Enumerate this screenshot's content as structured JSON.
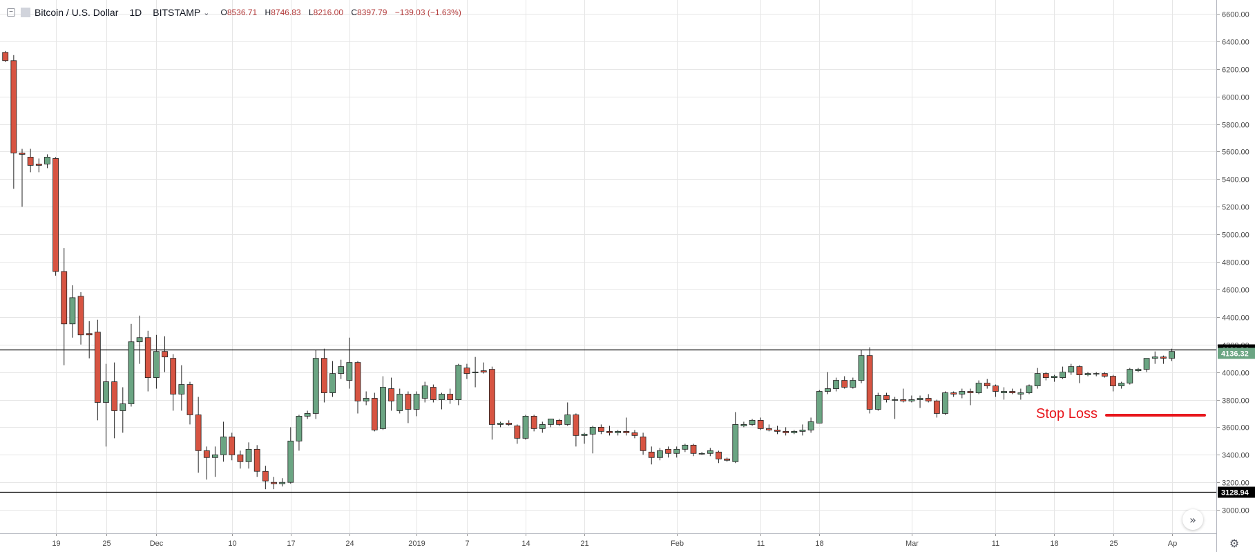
{
  "header": {
    "toggle_icon": "minus-square-icon",
    "symbol": "Bitcoin / U.S. Dollar",
    "interval": "1D",
    "exchange": "BITSTAMP",
    "ohlc": {
      "open_label": "O",
      "open": "8536.71",
      "high_label": "H",
      "high": "8746.83",
      "low_label": "L",
      "low": "8216.00",
      "close_label": "C",
      "close": "8397.79",
      "change": "−139.03 (−1.63%)"
    }
  },
  "annotation": {
    "text": "Stop Loss",
    "color": "#e8161c"
  },
  "colors": {
    "up": "#6ba583",
    "down": "#d75442",
    "grid": "#e6e6e6",
    "hline": "#000000"
  },
  "chart_data": {
    "type": "candlestick",
    "title": "",
    "xlabel": "",
    "ylabel": "",
    "ylim": [
      2830,
      6700
    ],
    "grid": true,
    "y_ticks": [
      3000,
      3200,
      3400,
      3600,
      3800,
      4000,
      4200,
      4400,
      4600,
      4800,
      5000,
      5200,
      5400,
      5600,
      5800,
      6000,
      6200,
      6400,
      6600
    ],
    "y_tick_labels": [
      "3000.00",
      "3200.00",
      "3400.00",
      "3600.00",
      "3800.00",
      "4000.00",
      "4200.00",
      "4400.00",
      "4600.00",
      "4800.00",
      "5000.00",
      "5200.00",
      "5400.00",
      "5600.00",
      "5800.00",
      "6000.00",
      "6200.00",
      "6400.00",
      "6600.00"
    ],
    "x_ticks": [
      {
        "index": 6,
        "label": "19"
      },
      {
        "index": 12,
        "label": "25"
      },
      {
        "index": 18,
        "label": "Dec"
      },
      {
        "index": 27,
        "label": "10"
      },
      {
        "index": 34,
        "label": "17"
      },
      {
        "index": 41,
        "label": "24"
      },
      {
        "index": 49,
        "label": "2019"
      },
      {
        "index": 55,
        "label": "7"
      },
      {
        "index": 62,
        "label": "14"
      },
      {
        "index": 69,
        "label": "21"
      },
      {
        "index": 80,
        "label": "Feb"
      },
      {
        "index": 90,
        "label": "11"
      },
      {
        "index": 97,
        "label": "18"
      },
      {
        "index": 108,
        "label": "Mar"
      },
      {
        "index": 118,
        "label": "11"
      },
      {
        "index": 125,
        "label": "18"
      },
      {
        "index": 132,
        "label": "25"
      },
      {
        "index": 139,
        "label": "Ap"
      }
    ],
    "horizontal_lines": [
      {
        "value": 4161.24,
        "label": "4161.24"
      },
      {
        "value": 3128.94,
        "label": "3128.94"
      }
    ],
    "last_price": {
      "value": 4136.32,
      "label": "4136.32"
    },
    "candles": [
      [
        6320,
        6330,
        6250,
        6260
      ],
      [
        6260,
        6300,
        5330,
        5590
      ],
      [
        5590,
        5620,
        5200,
        5580
      ],
      [
        5560,
        5620,
        5450,
        5500
      ],
      [
        5510,
        5550,
        5450,
        5500
      ],
      [
        5510,
        5580,
        5480,
        5560
      ],
      [
        5550,
        5560,
        4700,
        4730
      ],
      [
        4730,
        4900,
        4050,
        4350
      ],
      [
        4350,
        4630,
        4250,
        4540
      ],
      [
        4550,
        4580,
        4200,
        4270
      ],
      [
        4280,
        4370,
        4100,
        4270
      ],
      [
        4290,
        4380,
        3650,
        3780
      ],
      [
        3780,
        4060,
        3460,
        3930
      ],
      [
        3930,
        4070,
        3520,
        3720
      ],
      [
        3720,
        3890,
        3560,
        3770
      ],
      [
        3770,
        4350,
        3750,
        4220
      ],
      [
        4220,
        4410,
        4060,
        4250
      ],
      [
        4250,
        4300,
        3860,
        3960
      ],
      [
        3960,
        4270,
        3880,
        4150
      ],
      [
        4150,
        4260,
        4000,
        4110
      ],
      [
        4100,
        4130,
        3720,
        3840
      ],
      [
        3840,
        4050,
        3720,
        3910
      ],
      [
        3910,
        3930,
        3620,
        3690
      ],
      [
        3690,
        3820,
        3270,
        3430
      ],
      [
        3430,
        3460,
        3220,
        3380
      ],
      [
        3380,
        3460,
        3240,
        3400
      ],
      [
        3400,
        3640,
        3350,
        3530
      ],
      [
        3530,
        3560,
        3360,
        3400
      ],
      [
        3400,
        3430,
        3300,
        3350
      ],
      [
        3350,
        3490,
        3300,
        3440
      ],
      [
        3440,
        3470,
        3240,
        3280
      ],
      [
        3280,
        3320,
        3150,
        3210
      ],
      [
        3200,
        3240,
        3150,
        3190
      ],
      [
        3190,
        3230,
        3170,
        3200
      ],
      [
        3200,
        3600,
        3190,
        3500
      ],
      [
        3500,
        3690,
        3430,
        3680
      ],
      [
        3680,
        3720,
        3660,
        3700
      ],
      [
        3700,
        4160,
        3660,
        4100
      ],
      [
        4100,
        4170,
        3780,
        3850
      ],
      [
        3850,
        4080,
        3820,
        3990
      ],
      [
        3990,
        4090,
        3950,
        4040
      ],
      [
        3940,
        4250,
        3880,
        4070
      ],
      [
        4070,
        4080,
        3700,
        3790
      ],
      [
        3790,
        3860,
        3760,
        3810
      ],
      [
        3810,
        3850,
        3570,
        3580
      ],
      [
        3590,
        3970,
        3580,
        3890
      ],
      [
        3880,
        3960,
        3720,
        3790
      ],
      [
        3720,
        3880,
        3700,
        3840
      ],
      [
        3840,
        3860,
        3630,
        3730
      ],
      [
        3730,
        3860,
        3680,
        3840
      ],
      [
        3810,
        3930,
        3780,
        3900
      ],
      [
        3890,
        3910,
        3780,
        3800
      ],
      [
        3800,
        3850,
        3730,
        3840
      ],
      [
        3840,
        3880,
        3770,
        3800
      ],
      [
        3800,
        4060,
        3760,
        4050
      ],
      [
        4030,
        4060,
        3950,
        3990
      ],
      [
        4000,
        4110,
        3890,
        4000
      ],
      [
        4010,
        4070,
        3990,
        4000
      ],
      [
        4020,
        4040,
        3510,
        3620
      ],
      [
        3620,
        3640,
        3600,
        3630
      ],
      [
        3630,
        3650,
        3610,
        3620
      ],
      [
        3610,
        3620,
        3480,
        3520
      ],
      [
        3520,
        3690,
        3510,
        3680
      ],
      [
        3680,
        3690,
        3570,
        3590
      ],
      [
        3590,
        3640,
        3560,
        3620
      ],
      [
        3620,
        3660,
        3600,
        3660
      ],
      [
        3650,
        3660,
        3610,
        3620
      ],
      [
        3620,
        3780,
        3610,
        3690
      ],
      [
        3690,
        3700,
        3460,
        3540
      ],
      [
        3540,
        3560,
        3480,
        3550
      ],
      [
        3550,
        3610,
        3410,
        3600
      ],
      [
        3600,
        3620,
        3550,
        3570
      ],
      [
        3570,
        3610,
        3540,
        3560
      ],
      [
        3560,
        3580,
        3540,
        3570
      ],
      [
        3570,
        3670,
        3540,
        3560
      ],
      [
        3560,
        3580,
        3520,
        3540
      ],
      [
        3530,
        3560,
        3400,
        3430
      ],
      [
        3420,
        3460,
        3330,
        3380
      ],
      [
        3380,
        3450,
        3360,
        3430
      ],
      [
        3440,
        3460,
        3380,
        3410
      ],
      [
        3410,
        3460,
        3380,
        3440
      ],
      [
        3440,
        3480,
        3420,
        3470
      ],
      [
        3470,
        3480,
        3390,
        3410
      ],
      [
        3410,
        3420,
        3400,
        3410
      ],
      [
        3410,
        3450,
        3390,
        3430
      ],
      [
        3420,
        3430,
        3340,
        3370
      ],
      [
        3370,
        3380,
        3350,
        3360
      ],
      [
        3350,
        3710,
        3340,
        3620
      ],
      [
        3610,
        3640,
        3600,
        3620
      ],
      [
        3620,
        3660,
        3610,
        3650
      ],
      [
        3650,
        3670,
        3580,
        3590
      ],
      [
        3590,
        3620,
        3570,
        3580
      ],
      [
        3580,
        3610,
        3550,
        3570
      ],
      [
        3570,
        3600,
        3540,
        3560
      ],
      [
        3560,
        3580,
        3550,
        3570
      ],
      [
        3570,
        3620,
        3540,
        3580
      ],
      [
        3580,
        3670,
        3560,
        3640
      ],
      [
        3630,
        3870,
        3630,
        3860
      ],
      [
        3860,
        4000,
        3840,
        3880
      ],
      [
        3880,
        3960,
        3860,
        3940
      ],
      [
        3940,
        3970,
        3880,
        3890
      ],
      [
        3890,
        3960,
        3880,
        3940
      ],
      [
        3940,
        4160,
        3920,
        4120
      ],
      [
        4120,
        4180,
        3700,
        3730
      ],
      [
        3730,
        3850,
        3720,
        3830
      ],
      [
        3830,
        3850,
        3780,
        3800
      ],
      [
        3800,
        3820,
        3660,
        3800
      ],
      [
        3800,
        3880,
        3780,
        3790
      ],
      [
        3790,
        3830,
        3780,
        3800
      ],
      [
        3800,
        3830,
        3740,
        3810
      ],
      [
        3810,
        3840,
        3780,
        3790
      ],
      [
        3790,
        3800,
        3670,
        3700
      ],
      [
        3700,
        3860,
        3690,
        3850
      ],
      [
        3850,
        3860,
        3820,
        3840
      ],
      [
        3840,
        3880,
        3810,
        3860
      ],
      [
        3860,
        3880,
        3760,
        3850
      ],
      [
        3850,
        3940,
        3840,
        3920
      ],
      [
        3920,
        3950,
        3880,
        3900
      ],
      [
        3900,
        3910,
        3820,
        3860
      ],
      [
        3850,
        3890,
        3800,
        3860
      ],
      [
        3860,
        3880,
        3840,
        3850
      ],
      [
        3840,
        3880,
        3800,
        3850
      ],
      [
        3850,
        3910,
        3840,
        3900
      ],
      [
        3900,
        4030,
        3880,
        3990
      ],
      [
        3990,
        4000,
        3940,
        3960
      ],
      [
        3960,
        3980,
        3930,
        3970
      ],
      [
        3960,
        4040,
        3950,
        4000
      ],
      [
        4000,
        4060,
        3980,
        4040
      ],
      [
        4040,
        4050,
        3920,
        3980
      ],
      [
        3980,
        4000,
        3970,
        3990
      ],
      [
        3990,
        4000,
        3970,
        3990
      ],
      [
        3990,
        4000,
        3960,
        3970
      ],
      [
        3970,
        3980,
        3860,
        3900
      ],
      [
        3900,
        3930,
        3880,
        3920
      ],
      [
        3920,
        4030,
        3910,
        4020
      ],
      [
        4010,
        4030,
        4000,
        4020
      ],
      [
        4020,
        4100,
        4000,
        4100
      ],
      [
        4100,
        4150,
        4060,
        4110
      ],
      [
        4110,
        4120,
        4060,
        4100
      ],
      [
        4100,
        4170,
        4080,
        4150
      ]
    ]
  }
}
